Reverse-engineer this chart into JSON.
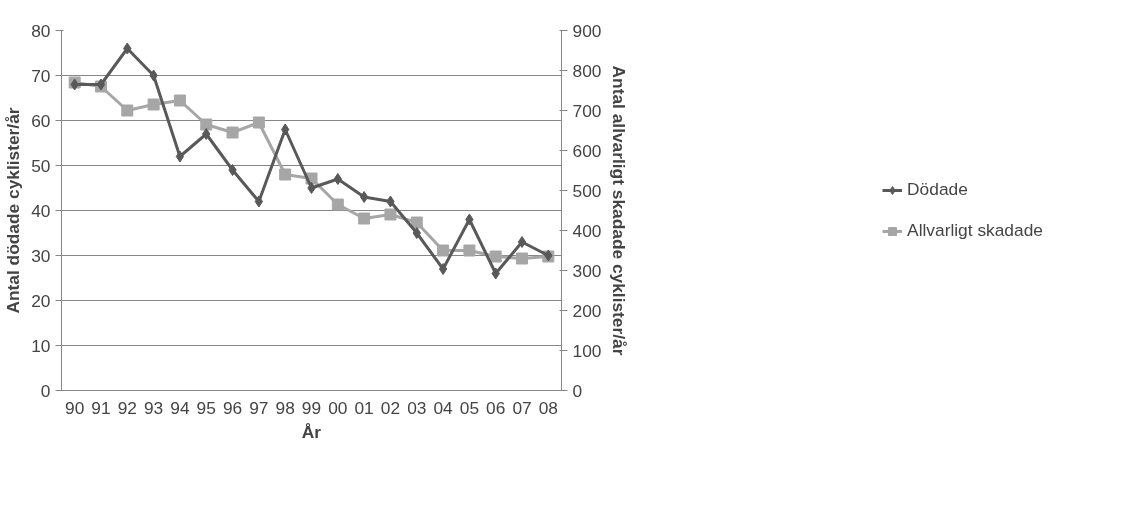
{
  "chart_data": {
    "type": "line",
    "xlabel": "År",
    "ylabel": "Antal dödade cyklister/år",
    "y2label": "Antal allvarligt skadade cyklister/år",
    "categories": [
      "90",
      "91",
      "92",
      "93",
      "94",
      "95",
      "96",
      "97",
      "98",
      "99",
      "00",
      "01",
      "02",
      "03",
      "04",
      "05",
      "06",
      "07",
      "08"
    ],
    "series": [
      {
        "name": "Dödade",
        "color": "#595959",
        "marker": "diamond",
        "values": [
          68,
          68,
          76,
          70,
          52,
          57,
          49,
          42,
          58,
          45,
          47,
          43,
          42,
          35,
          27,
          38,
          26,
          33,
          30
        ]
      },
      {
        "name": "Allvarligt skadade",
        "color": "#a6a6a6",
        "marker": "square",
        "axis": "y2",
        "values": [
          770,
          760,
          700,
          715,
          725,
          665,
          645,
          670,
          540,
          530,
          465,
          430,
          440,
          420,
          350,
          350,
          335,
          330,
          335
        ]
      }
    ],
    "ylim": [
      0,
      80
    ],
    "yticks": [
      0,
      10,
      20,
      30,
      40,
      50,
      60,
      70,
      80
    ],
    "y2lim": [
      0,
      900
    ],
    "y2ticks": [
      0,
      100,
      200,
      300,
      400,
      500,
      600,
      700,
      800,
      900
    ],
    "grid": "y",
    "legend": "right"
  }
}
